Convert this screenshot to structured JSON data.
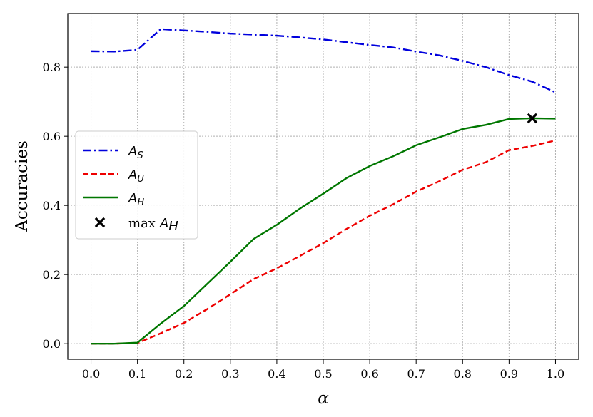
{
  "chart_data": {
    "type": "line",
    "xlabel": "α",
    "ylabel": "Accuracies",
    "xlim": [
      -0.05,
      1.05
    ],
    "ylim": [
      -0.045,
      0.955
    ],
    "xticks": [
      0.0,
      0.1,
      0.2,
      0.3,
      0.4,
      0.5,
      0.6,
      0.7,
      0.8,
      0.9,
      1.0
    ],
    "xtick_labels": [
      "0.0",
      "0.1",
      "0.2",
      "0.3",
      "0.4",
      "0.5",
      "0.6",
      "0.7",
      "0.8",
      "0.9",
      "1.0"
    ],
    "yticks": [
      0.0,
      0.2,
      0.4,
      0.6,
      0.8
    ],
    "ytick_labels": [
      "0.0",
      "0.2",
      "0.4",
      "0.6",
      "0.8"
    ],
    "grid": true,
    "legend_position": "center-left",
    "x": [
      0.0,
      0.05,
      0.1,
      0.15,
      0.2,
      0.25,
      0.3,
      0.35,
      0.4,
      0.45,
      0.5,
      0.55,
      0.6,
      0.65,
      0.7,
      0.75,
      0.8,
      0.85,
      0.9,
      0.95,
      1.0
    ],
    "series": [
      {
        "name": "A_S",
        "legend_main": "A",
        "legend_sub": "S",
        "color": "#0000dd",
        "style": "dashdot",
        "values": [
          0.846,
          0.845,
          0.85,
          0.91,
          0.906,
          0.902,
          0.897,
          0.894,
          0.891,
          0.886,
          0.88,
          0.872,
          0.864,
          0.857,
          0.845,
          0.834,
          0.818,
          0.8,
          0.777,
          0.758,
          0.727
        ]
      },
      {
        "name": "A_U",
        "legend_main": "A",
        "legend_sub": "U",
        "color": "#ee0000",
        "style": "dashed",
        "values": [
          0.0,
          0.0,
          0.002,
          0.03,
          0.06,
          0.1,
          0.143,
          0.187,
          0.218,
          0.254,
          0.291,
          0.332,
          0.37,
          0.403,
          0.44,
          0.47,
          0.503,
          0.525,
          0.56,
          0.572,
          0.588
        ]
      },
      {
        "name": "A_H",
        "legend_main": "A",
        "legend_sub": "H",
        "color": "#007700",
        "style": "solid",
        "values": [
          0.0,
          0.0,
          0.003,
          0.058,
          0.109,
          0.173,
          0.237,
          0.303,
          0.344,
          0.391,
          0.434,
          0.479,
          0.514,
          0.542,
          0.574,
          0.597,
          0.621,
          0.633,
          0.65,
          0.652,
          0.651
        ]
      }
    ],
    "marker": {
      "name": "max A_H",
      "legend_prefix": "max",
      "legend_main": "A",
      "legend_sub": "H",
      "color": "#000000",
      "x": 0.95,
      "y": 0.652
    }
  }
}
